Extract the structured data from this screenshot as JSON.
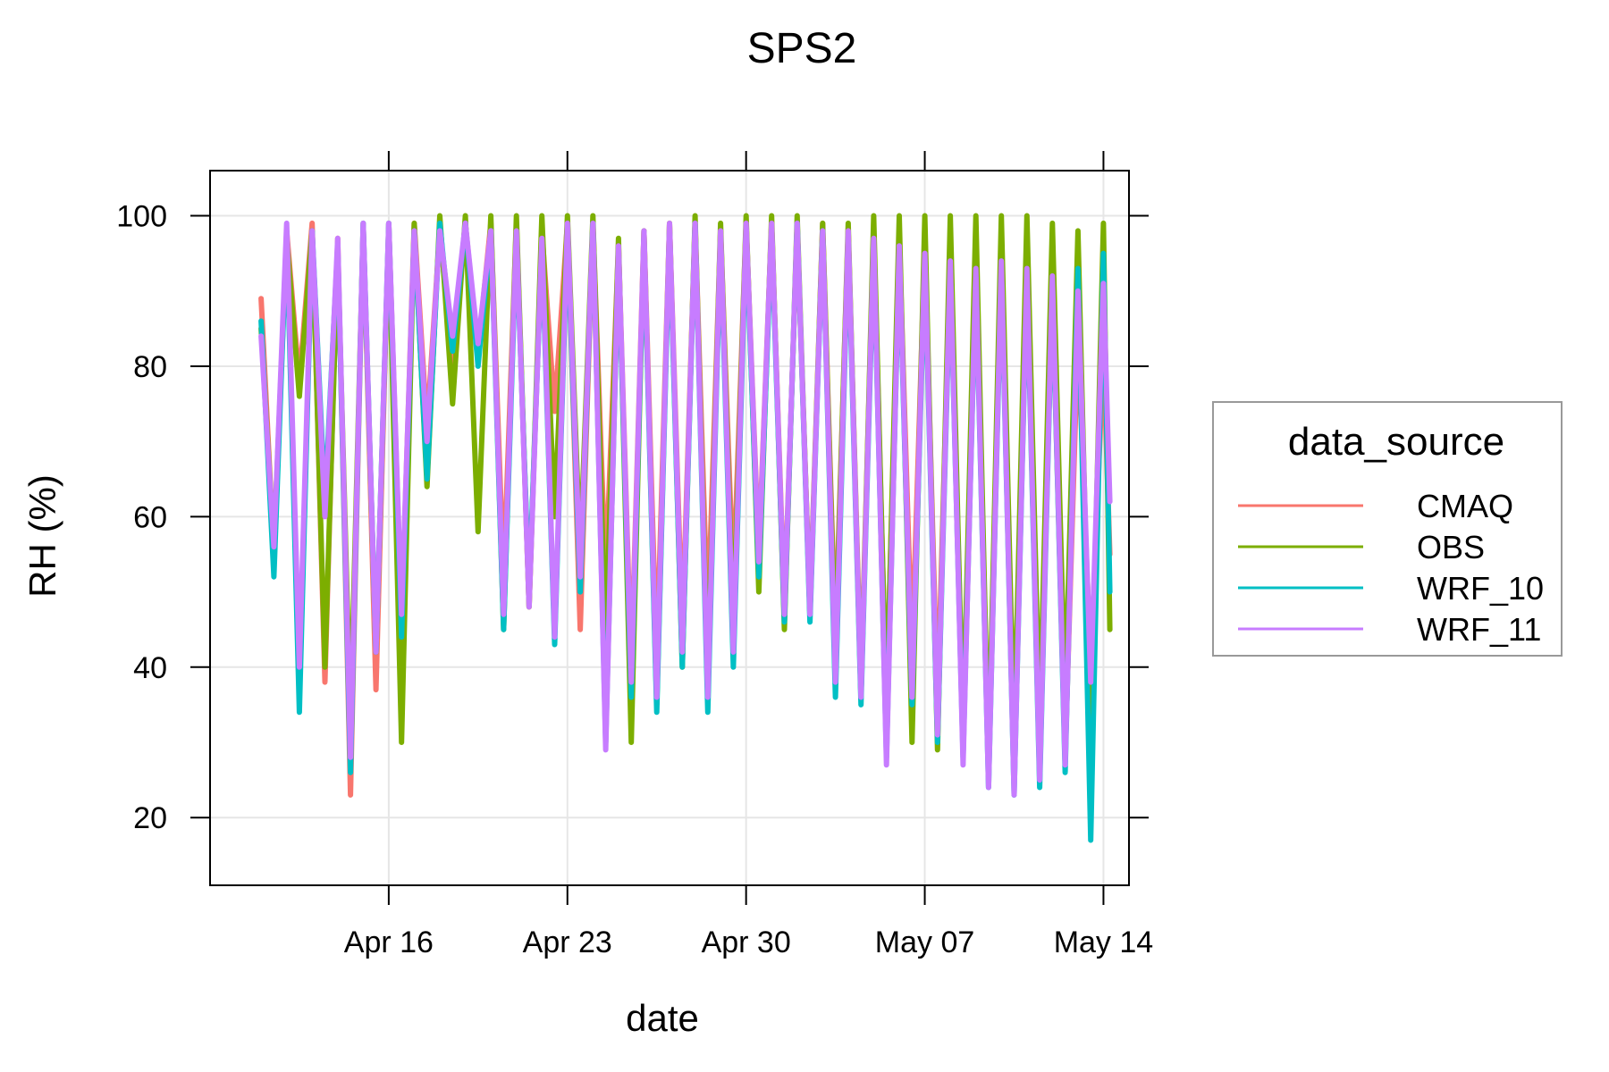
{
  "chart_data": {
    "type": "line",
    "title": "SPS2",
    "xlabel": "date",
    "ylabel": "RH (%)",
    "x_range": [
      "2019-04-09",
      "2019-05-15"
    ],
    "ylim": [
      11,
      106
    ],
    "y_ticks": [
      20,
      40,
      60,
      80,
      100
    ],
    "x_ticks": [
      {
        "date": "2019-04-16",
        "label": "Apr 16"
      },
      {
        "date": "2019-04-23",
        "label": "Apr 23"
      },
      {
        "date": "2019-04-30",
        "label": "Apr 30"
      },
      {
        "date": "2019-05-07",
        "label": "May 07"
      },
      {
        "date": "2019-05-14",
        "label": "May 14"
      }
    ],
    "grid": true,
    "legend": {
      "title": "data_source",
      "placement": "right"
    },
    "series": [
      {
        "name": "CMAQ",
        "color": "#F8766D",
        "points": [
          [
            "2019-04-11",
            89
          ],
          [
            "2019-04-11T12:00",
            55
          ],
          [
            "2019-04-12",
            98
          ],
          [
            "2019-04-12T12:00",
            78
          ],
          [
            "2019-04-13",
            99
          ],
          [
            "2019-04-13T12:00",
            38
          ],
          [
            "2019-04-14",
            97
          ],
          [
            "2019-04-14T12:00",
            23
          ],
          [
            "2019-04-15",
            99
          ],
          [
            "2019-04-15T12:00",
            37
          ],
          [
            "2019-04-16",
            99
          ],
          [
            "2019-04-16T12:00",
            46
          ],
          [
            "2019-04-17",
            99
          ],
          [
            "2019-04-17T12:00",
            72
          ],
          [
            "2019-04-18",
            98
          ],
          [
            "2019-04-18T12:00",
            80
          ],
          [
            "2019-04-19",
            99
          ],
          [
            "2019-04-19T12:00",
            82
          ],
          [
            "2019-04-20",
            99
          ],
          [
            "2019-04-20T12:00",
            52
          ],
          [
            "2019-04-21",
            99
          ],
          [
            "2019-04-21T12:00",
            48
          ],
          [
            "2019-04-22",
            98
          ],
          [
            "2019-04-22T12:00",
            74
          ],
          [
            "2019-04-23",
            99
          ],
          [
            "2019-04-23T12:00",
            45
          ],
          [
            "2019-04-24",
            99
          ],
          [
            "2019-04-24T12:00",
            52
          ],
          [
            "2019-04-25",
            96
          ],
          [
            "2019-04-25T12:00",
            40
          ],
          [
            "2019-04-26",
            98
          ],
          [
            "2019-04-26T12:00",
            41
          ],
          [
            "2019-04-27",
            99
          ],
          [
            "2019-04-27T12:00",
            45
          ],
          [
            "2019-04-28",
            99
          ],
          [
            "2019-04-28T12:00",
            46
          ],
          [
            "2019-04-29",
            98
          ],
          [
            "2019-04-29T12:00",
            51
          ],
          [
            "2019-04-30",
            99
          ],
          [
            "2019-04-30T12:00",
            55
          ],
          [
            "2019-05-01",
            99
          ],
          [
            "2019-05-01T12:00",
            48
          ],
          [
            "2019-05-02",
            98
          ],
          [
            "2019-05-02T12:00",
            48
          ],
          [
            "2019-05-03",
            99
          ],
          [
            "2019-05-03T12:00",
            44
          ],
          [
            "2019-05-04",
            98
          ],
          [
            "2019-05-04T12:00",
            38
          ],
          [
            "2019-05-05",
            98
          ],
          [
            "2019-05-05T12:00",
            35
          ],
          [
            "2019-05-06",
            97
          ],
          [
            "2019-05-06T12:00",
            42
          ],
          [
            "2019-05-07",
            96
          ],
          [
            "2019-05-07T12:00",
            35
          ],
          [
            "2019-05-08",
            95
          ],
          [
            "2019-05-08T12:00",
            32
          ],
          [
            "2019-05-09",
            94
          ],
          [
            "2019-05-09T12:00",
            28
          ],
          [
            "2019-05-10",
            95
          ],
          [
            "2019-05-10T12:00",
            26
          ],
          [
            "2019-05-11",
            93
          ],
          [
            "2019-05-11T12:00",
            31
          ],
          [
            "2019-05-12",
            90
          ],
          [
            "2019-05-12T12:00",
            28
          ],
          [
            "2019-05-13",
            84
          ],
          [
            "2019-05-13T12:00",
            40
          ],
          [
            "2019-05-14",
            82
          ],
          [
            "2019-05-14T06:00",
            55
          ]
        ]
      },
      {
        "name": "OBS",
        "color": "#7CAE00",
        "points": [
          [
            "2019-04-11",
            85
          ],
          [
            "2019-04-11T12:00",
            56
          ],
          [
            "2019-04-12",
            97
          ],
          [
            "2019-04-12T12:00",
            76
          ],
          [
            "2019-04-13",
            98
          ],
          [
            "2019-04-13T12:00",
            40
          ],
          [
            "2019-04-14",
            95
          ],
          [
            "2019-04-14T12:00",
            33
          ],
          [
            "2019-04-15",
            98
          ],
          [
            "2019-04-15T12:00",
            42
          ],
          [
            "2019-04-16",
            98
          ],
          [
            "2019-04-16T12:00",
            30
          ],
          [
            "2019-04-17",
            99
          ],
          [
            "2019-04-17T12:00",
            64
          ],
          [
            "2019-04-18",
            100
          ],
          [
            "2019-04-18T12:00",
            75
          ],
          [
            "2019-04-19",
            100
          ],
          [
            "2019-04-19T12:00",
            58
          ],
          [
            "2019-04-20",
            100
          ],
          [
            "2019-04-20T12:00",
            45
          ],
          [
            "2019-04-21",
            100
          ],
          [
            "2019-04-21T12:00",
            48
          ],
          [
            "2019-04-22",
            100
          ],
          [
            "2019-04-22T12:00",
            60
          ],
          [
            "2019-04-23",
            100
          ],
          [
            "2019-04-23T12:00",
            55
          ],
          [
            "2019-04-24",
            100
          ],
          [
            "2019-04-24T12:00",
            43
          ],
          [
            "2019-04-25",
            97
          ],
          [
            "2019-04-25T12:00",
            30
          ],
          [
            "2019-04-26",
            98
          ],
          [
            "2019-04-26T12:00",
            35
          ],
          [
            "2019-04-27",
            99
          ],
          [
            "2019-04-27T12:00",
            40
          ],
          [
            "2019-04-28",
            100
          ],
          [
            "2019-04-28T12:00",
            38
          ],
          [
            "2019-04-29",
            99
          ],
          [
            "2019-04-29T12:00",
            45
          ],
          [
            "2019-04-30",
            100
          ],
          [
            "2019-04-30T12:00",
            50
          ],
          [
            "2019-05-01",
            100
          ],
          [
            "2019-05-01T12:00",
            45
          ],
          [
            "2019-05-02",
            100
          ],
          [
            "2019-05-02T12:00",
            47
          ],
          [
            "2019-05-03",
            99
          ],
          [
            "2019-05-03T12:00",
            42
          ],
          [
            "2019-05-04",
            99
          ],
          [
            "2019-05-04T12:00",
            36
          ],
          [
            "2019-05-05",
            100
          ],
          [
            "2019-05-05T12:00",
            34
          ],
          [
            "2019-05-06",
            100
          ],
          [
            "2019-05-06T12:00",
            30
          ],
          [
            "2019-05-07",
            100
          ],
          [
            "2019-05-07T12:00",
            29
          ],
          [
            "2019-05-08",
            100
          ],
          [
            "2019-05-08T12:00",
            31
          ],
          [
            "2019-05-09",
            100
          ],
          [
            "2019-05-09T12:00",
            27
          ],
          [
            "2019-05-10",
            100
          ],
          [
            "2019-05-10T12:00",
            30
          ],
          [
            "2019-05-11",
            100
          ],
          [
            "2019-05-11T12:00",
            32
          ],
          [
            "2019-05-12",
            99
          ],
          [
            "2019-05-12T12:00",
            35
          ],
          [
            "2019-05-13",
            98
          ],
          [
            "2019-05-13T12:00",
            30
          ],
          [
            "2019-05-14",
            99
          ],
          [
            "2019-05-14T06:00",
            45
          ]
        ]
      },
      {
        "name": "WRF_10",
        "color": "#00BFC4",
        "points": [
          [
            "2019-04-11",
            86
          ],
          [
            "2019-04-11T12:00",
            52
          ],
          [
            "2019-04-12",
            98
          ],
          [
            "2019-04-12T12:00",
            34
          ],
          [
            "2019-04-13",
            98
          ],
          [
            "2019-04-13T12:00",
            62
          ],
          [
            "2019-04-14",
            96
          ],
          [
            "2019-04-14T12:00",
            26
          ],
          [
            "2019-04-15",
            99
          ],
          [
            "2019-04-15T12:00",
            42
          ],
          [
            "2019-04-16",
            99
          ],
          [
            "2019-04-16T12:00",
            44
          ],
          [
            "2019-04-17",
            98
          ],
          [
            "2019-04-17T12:00",
            65
          ],
          [
            "2019-04-18",
            99
          ],
          [
            "2019-04-18T12:00",
            82
          ],
          [
            "2019-04-19",
            99
          ],
          [
            "2019-04-19T12:00",
            80
          ],
          [
            "2019-04-20",
            98
          ],
          [
            "2019-04-20T12:00",
            45
          ],
          [
            "2019-04-21",
            97
          ],
          [
            "2019-04-21T12:00",
            50
          ],
          [
            "2019-04-22",
            96
          ],
          [
            "2019-04-22T12:00",
            43
          ],
          [
            "2019-04-23",
            98
          ],
          [
            "2019-04-23T12:00",
            50
          ],
          [
            "2019-04-24",
            99
          ],
          [
            "2019-04-24T12:00",
            30
          ],
          [
            "2019-04-25",
            95
          ],
          [
            "2019-04-25T12:00",
            36
          ],
          [
            "2019-04-26",
            97
          ],
          [
            "2019-04-26T12:00",
            34
          ],
          [
            "2019-04-27",
            98
          ],
          [
            "2019-04-27T12:00",
            40
          ],
          [
            "2019-04-28",
            99
          ],
          [
            "2019-04-28T12:00",
            34
          ],
          [
            "2019-04-29",
            97
          ],
          [
            "2019-04-29T12:00",
            40
          ],
          [
            "2019-04-30",
            98
          ],
          [
            "2019-04-30T12:00",
            52
          ],
          [
            "2019-05-01",
            98
          ],
          [
            "2019-05-01T12:00",
            46
          ],
          [
            "2019-05-02",
            99
          ],
          [
            "2019-05-02T12:00",
            46
          ],
          [
            "2019-05-03",
            98
          ],
          [
            "2019-05-03T12:00",
            36
          ],
          [
            "2019-05-04",
            97
          ],
          [
            "2019-05-04T12:00",
            35
          ],
          [
            "2019-05-05",
            96
          ],
          [
            "2019-05-05T12:00",
            28
          ],
          [
            "2019-05-06",
            95
          ],
          [
            "2019-05-06T12:00",
            35
          ],
          [
            "2019-05-07",
            94
          ],
          [
            "2019-05-07T12:00",
            30
          ],
          [
            "2019-05-08",
            93
          ],
          [
            "2019-05-08T12:00",
            28
          ],
          [
            "2019-05-09",
            92
          ],
          [
            "2019-05-09T12:00",
            24
          ],
          [
            "2019-05-10",
            93
          ],
          [
            "2019-05-10T12:00",
            23
          ],
          [
            "2019-05-11",
            92
          ],
          [
            "2019-05-11T12:00",
            24
          ],
          [
            "2019-05-12",
            91
          ],
          [
            "2019-05-12T12:00",
            26
          ],
          [
            "2019-05-13",
            93
          ],
          [
            "2019-05-13T12:00",
            17
          ],
          [
            "2019-05-14",
            95
          ],
          [
            "2019-05-14T06:00",
            50
          ]
        ]
      },
      {
        "name": "WRF_11",
        "color": "#C77CFF",
        "points": [
          [
            "2019-04-11",
            84
          ],
          [
            "2019-04-11T12:00",
            56
          ],
          [
            "2019-04-12",
            99
          ],
          [
            "2019-04-12T12:00",
            40
          ],
          [
            "2019-04-13",
            98
          ],
          [
            "2019-04-13T12:00",
            60
          ],
          [
            "2019-04-14",
            97
          ],
          [
            "2019-04-14T12:00",
            28
          ],
          [
            "2019-04-15",
            99
          ],
          [
            "2019-04-15T12:00",
            42
          ],
          [
            "2019-04-16",
            99
          ],
          [
            "2019-04-16T12:00",
            47
          ],
          [
            "2019-04-17",
            98
          ],
          [
            "2019-04-17T12:00",
            70
          ],
          [
            "2019-04-18",
            98
          ],
          [
            "2019-04-18T12:00",
            84
          ],
          [
            "2019-04-19",
            99
          ],
          [
            "2019-04-19T12:00",
            83
          ],
          [
            "2019-04-20",
            98
          ],
          [
            "2019-04-20T12:00",
            47
          ],
          [
            "2019-04-21",
            98
          ],
          [
            "2019-04-21T12:00",
            48
          ],
          [
            "2019-04-22",
            97
          ],
          [
            "2019-04-22T12:00",
            44
          ],
          [
            "2019-04-23",
            99
          ],
          [
            "2019-04-23T12:00",
            52
          ],
          [
            "2019-04-24",
            99
          ],
          [
            "2019-04-24T12:00",
            29
          ],
          [
            "2019-04-25",
            96
          ],
          [
            "2019-04-25T12:00",
            38
          ],
          [
            "2019-04-26",
            98
          ],
          [
            "2019-04-26T12:00",
            36
          ],
          [
            "2019-04-27",
            99
          ],
          [
            "2019-04-27T12:00",
            42
          ],
          [
            "2019-04-28",
            99
          ],
          [
            "2019-04-28T12:00",
            36
          ],
          [
            "2019-04-29",
            98
          ],
          [
            "2019-04-29T12:00",
            42
          ],
          [
            "2019-04-30",
            99
          ],
          [
            "2019-04-30T12:00",
            54
          ],
          [
            "2019-05-01",
            99
          ],
          [
            "2019-05-01T12:00",
            47
          ],
          [
            "2019-05-02",
            99
          ],
          [
            "2019-05-02T12:00",
            47
          ],
          [
            "2019-05-03",
            98
          ],
          [
            "2019-05-03T12:00",
            38
          ],
          [
            "2019-05-04",
            98
          ],
          [
            "2019-05-04T12:00",
            36
          ],
          [
            "2019-05-05",
            97
          ],
          [
            "2019-05-05T12:00",
            27
          ],
          [
            "2019-05-06",
            96
          ],
          [
            "2019-05-06T12:00",
            36
          ],
          [
            "2019-05-07",
            95
          ],
          [
            "2019-05-07T12:00",
            31
          ],
          [
            "2019-05-08",
            94
          ],
          [
            "2019-05-08T12:00",
            27
          ],
          [
            "2019-05-09",
            93
          ],
          [
            "2019-05-09T12:00",
            24
          ],
          [
            "2019-05-10",
            94
          ],
          [
            "2019-05-10T12:00",
            23
          ],
          [
            "2019-05-11",
            93
          ],
          [
            "2019-05-11T12:00",
            25
          ],
          [
            "2019-05-12",
            92
          ],
          [
            "2019-05-12T12:00",
            27
          ],
          [
            "2019-05-13",
            90
          ],
          [
            "2019-05-13T12:00",
            38
          ],
          [
            "2019-05-14",
            91
          ],
          [
            "2019-05-14T06:00",
            62
          ]
        ]
      }
    ]
  }
}
